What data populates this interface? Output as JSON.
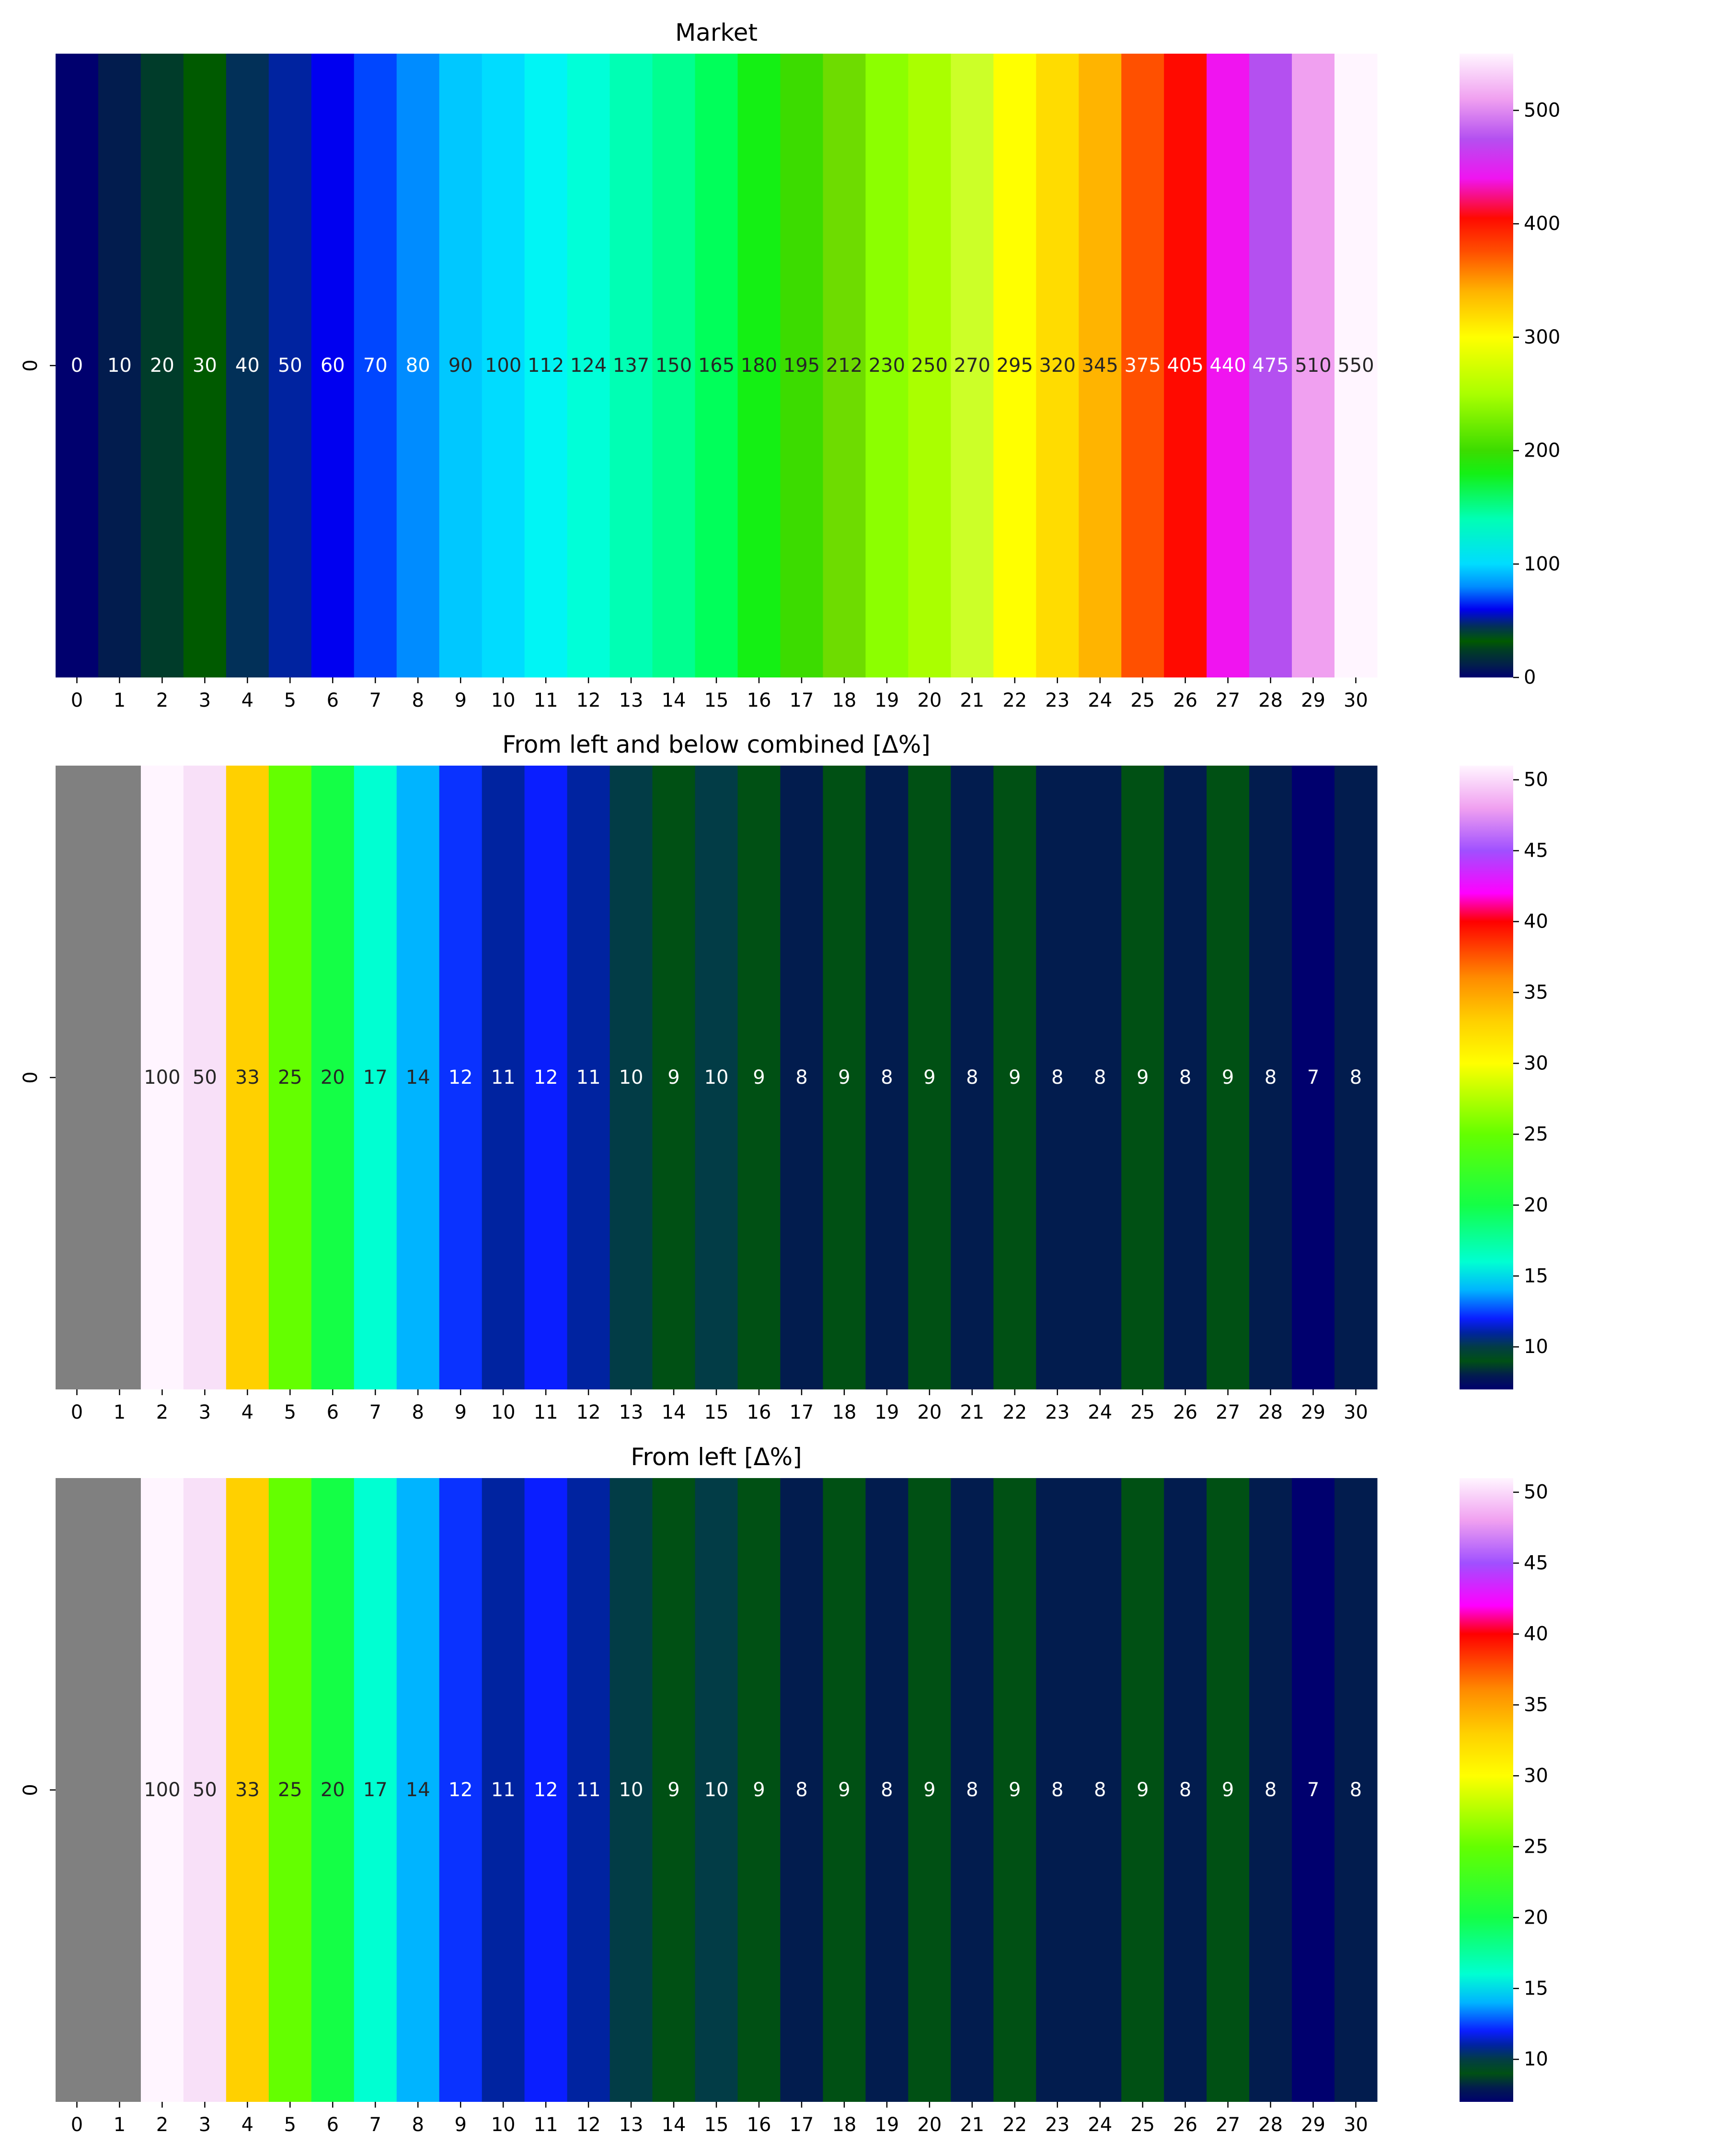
{
  "chart_data": [
    {
      "type": "heatmap",
      "title": "Market",
      "y_categories": [
        "0"
      ],
      "x_categories": [
        "0",
        "1",
        "2",
        "3",
        "4",
        "5",
        "6",
        "7",
        "8",
        "9",
        "10",
        "11",
        "12",
        "13",
        "14",
        "15",
        "16",
        "17",
        "18",
        "19",
        "20",
        "21",
        "22",
        "23",
        "24",
        "25",
        "26",
        "27",
        "28",
        "29",
        "30"
      ],
      "values": [
        0,
        10,
        20,
        30,
        40,
        50,
        60,
        70,
        80,
        90,
        100,
        112,
        124,
        137,
        150,
        165,
        180,
        195,
        212,
        230,
        250,
        270,
        295,
        320,
        345,
        375,
        405,
        440,
        475,
        510,
        550
      ],
      "cell_colors": [
        "#00006e",
        "#021c4e",
        "#003c2a",
        "#005a00",
        "#023058",
        "#0023a0",
        "#0000f0",
        "#0046ff",
        "#008cff",
        "#00c8ff",
        "#00dcff",
        "#00f5f5",
        "#00ffd8",
        "#00ffb4",
        "#00ff90",
        "#00ff5a",
        "#14f014",
        "#3cdc00",
        "#6edc00",
        "#8cff00",
        "#aaff00",
        "#ccff28",
        "#ffff00",
        "#ffdc00",
        "#ffb400",
        "#ff5000",
        "#ff0a00",
        "#f014f0",
        "#b450f0",
        "#f0a0f0",
        "#fff5ff"
      ],
      "label_colors": [
        "#ffffff",
        "#ffffff",
        "#ffffff",
        "#ffffff",
        "#ffffff",
        "#ffffff",
        "#ffffff",
        "#ffffff",
        "#ffffff",
        "#262626",
        "#262626",
        "#262626",
        "#262626",
        "#262626",
        "#262626",
        "#262626",
        "#262626",
        "#262626",
        "#262626",
        "#262626",
        "#262626",
        "#262626",
        "#262626",
        "#262626",
        "#262626",
        "#ffffff",
        "#ffffff",
        "#ffffff",
        "#ffffff",
        "#262626",
        "#262626"
      ],
      "colorbar": {
        "range": [
          0,
          550
        ],
        "ticks": [
          0,
          100,
          200,
          300,
          400,
          500
        ],
        "tick_labels": [
          "0",
          "100",
          "200",
          "300",
          "400",
          "500"
        ],
        "stops": [
          [
            0,
            "#00006e"
          ],
          [
            10,
            "#021c4e"
          ],
          [
            25,
            "#004020"
          ],
          [
            32,
            "#005a00"
          ],
          [
            45,
            "#023058"
          ],
          [
            60,
            "#0000f0"
          ],
          [
            80,
            "#008cff"
          ],
          [
            100,
            "#00dcff"
          ],
          [
            140,
            "#00ffb4"
          ],
          [
            180,
            "#14f014"
          ],
          [
            200,
            "#3cdc00"
          ],
          [
            250,
            "#aaff00"
          ],
          [
            300,
            "#ffff00"
          ],
          [
            340,
            "#ffb400"
          ],
          [
            375,
            "#ff5000"
          ],
          [
            405,
            "#ff0a00"
          ],
          [
            440,
            "#f014f0"
          ],
          [
            475,
            "#b450f0"
          ],
          [
            510,
            "#f0a0f0"
          ],
          [
            550,
            "#fff5ff"
          ]
        ]
      }
    },
    {
      "type": "heatmap",
      "title": "From left and below combined [Δ%]",
      "y_categories": [
        "0"
      ],
      "x_categories": [
        "0",
        "1",
        "2",
        "3",
        "4",
        "5",
        "6",
        "7",
        "8",
        "9",
        "10",
        "11",
        "12",
        "13",
        "14",
        "15",
        "16",
        "17",
        "18",
        "19",
        "20",
        "21",
        "22",
        "23",
        "24",
        "25",
        "26",
        "27",
        "28",
        "29",
        "30"
      ],
      "values": [
        null,
        null,
        100,
        50,
        33,
        25,
        20,
        17,
        14,
        12,
        11,
        12,
        11,
        10,
        9,
        10,
        9,
        8,
        9,
        8,
        9,
        8,
        9,
        8,
        8,
        9,
        8,
        9,
        8,
        7,
        8
      ],
      "missing_color": "#808080",
      "cell_colors": [
        "#808080",
        "#808080",
        "#fff5ff",
        "#f8e0f8",
        "#ffd000",
        "#64ff00",
        "#14ff46",
        "#00ffd2",
        "#00b4ff",
        "#0a32ff",
        "#0023a0",
        "#0a1eff",
        "#0023a0",
        "#023c46",
        "#005014",
        "#023c46",
        "#005014",
        "#021c4e",
        "#005014",
        "#021c4e",
        "#005014",
        "#021c4e",
        "#005014",
        "#021c4e",
        "#021c4e",
        "#005014",
        "#021c4e",
        "#005014",
        "#021c4e",
        "#00006e",
        "#021c4e"
      ],
      "label_colors": [
        "#ffffff",
        "#ffffff",
        "#262626",
        "#262626",
        "#262626",
        "#262626",
        "#262626",
        "#262626",
        "#262626",
        "#ffffff",
        "#ffffff",
        "#ffffff",
        "#ffffff",
        "#ffffff",
        "#ffffff",
        "#ffffff",
        "#ffffff",
        "#ffffff",
        "#ffffff",
        "#ffffff",
        "#ffffff",
        "#ffffff",
        "#ffffff",
        "#ffffff",
        "#ffffff",
        "#ffffff",
        "#ffffff",
        "#ffffff",
        "#ffffff",
        "#ffffff",
        "#ffffff"
      ],
      "colorbar": {
        "range": [
          7,
          51
        ],
        "ticks": [
          10,
          15,
          20,
          25,
          30,
          35,
          40,
          45,
          50
        ],
        "tick_labels": [
          "10",
          "15",
          "20",
          "25",
          "30",
          "35",
          "40",
          "45",
          "50"
        ],
        "stops": [
          [
            7,
            "#00006e"
          ],
          [
            8,
            "#021c4e"
          ],
          [
            9,
            "#005014"
          ],
          [
            10,
            "#023c46"
          ],
          [
            11,
            "#0023a0"
          ],
          [
            12,
            "#0a1eff"
          ],
          [
            14,
            "#00b4ff"
          ],
          [
            16,
            "#00ffd2"
          ],
          [
            20,
            "#14ff46"
          ],
          [
            25,
            "#64ff00"
          ],
          [
            30,
            "#ffff00"
          ],
          [
            33,
            "#ffd000"
          ],
          [
            36,
            "#ff8c00"
          ],
          [
            40,
            "#ff0000"
          ],
          [
            42,
            "#ff00ff"
          ],
          [
            45,
            "#a050ff"
          ],
          [
            48,
            "#f0a0f0"
          ],
          [
            51,
            "#fff5ff"
          ]
        ]
      }
    },
    {
      "type": "heatmap",
      "title": "From left [Δ%]",
      "y_categories": [
        "0"
      ],
      "x_categories": [
        "0",
        "1",
        "2",
        "3",
        "4",
        "5",
        "6",
        "7",
        "8",
        "9",
        "10",
        "11",
        "12",
        "13",
        "14",
        "15",
        "16",
        "17",
        "18",
        "19",
        "20",
        "21",
        "22",
        "23",
        "24",
        "25",
        "26",
        "27",
        "28",
        "29",
        "30"
      ],
      "values": [
        null,
        null,
        100,
        50,
        33,
        25,
        20,
        17,
        14,
        12,
        11,
        12,
        11,
        10,
        9,
        10,
        9,
        8,
        9,
        8,
        9,
        8,
        9,
        8,
        8,
        9,
        8,
        9,
        8,
        7,
        8
      ],
      "missing_color": "#808080",
      "cell_colors": [
        "#808080",
        "#808080",
        "#fff5ff",
        "#f8e0f8",
        "#ffd000",
        "#64ff00",
        "#14ff46",
        "#00ffd2",
        "#00b4ff",
        "#0a32ff",
        "#0023a0",
        "#0a1eff",
        "#0023a0",
        "#023c46",
        "#005014",
        "#023c46",
        "#005014",
        "#021c4e",
        "#005014",
        "#021c4e",
        "#005014",
        "#021c4e",
        "#005014",
        "#021c4e",
        "#021c4e",
        "#005014",
        "#021c4e",
        "#005014",
        "#021c4e",
        "#00006e",
        "#021c4e"
      ],
      "label_colors": [
        "#ffffff",
        "#ffffff",
        "#262626",
        "#262626",
        "#262626",
        "#262626",
        "#262626",
        "#262626",
        "#262626",
        "#ffffff",
        "#ffffff",
        "#ffffff",
        "#ffffff",
        "#ffffff",
        "#ffffff",
        "#ffffff",
        "#ffffff",
        "#ffffff",
        "#ffffff",
        "#ffffff",
        "#ffffff",
        "#ffffff",
        "#ffffff",
        "#ffffff",
        "#ffffff",
        "#ffffff",
        "#ffffff",
        "#ffffff",
        "#ffffff",
        "#ffffff",
        "#ffffff"
      ],
      "colorbar": {
        "range": [
          7,
          51
        ],
        "ticks": [
          10,
          15,
          20,
          25,
          30,
          35,
          40,
          45,
          50
        ],
        "tick_labels": [
          "10",
          "15",
          "20",
          "25",
          "30",
          "35",
          "40",
          "45",
          "50"
        ],
        "stops": [
          [
            7,
            "#00006e"
          ],
          [
            8,
            "#021c4e"
          ],
          [
            9,
            "#005014"
          ],
          [
            10,
            "#023c46"
          ],
          [
            11,
            "#0023a0"
          ],
          [
            12,
            "#0a1eff"
          ],
          [
            14,
            "#00b4ff"
          ],
          [
            16,
            "#00ffd2"
          ],
          [
            20,
            "#14ff46"
          ],
          [
            25,
            "#64ff00"
          ],
          [
            30,
            "#ffff00"
          ],
          [
            33,
            "#ffd000"
          ],
          [
            36,
            "#ff8c00"
          ],
          [
            40,
            "#ff0000"
          ],
          [
            42,
            "#ff00ff"
          ],
          [
            45,
            "#a050ff"
          ],
          [
            48,
            "#f0a0f0"
          ],
          [
            51,
            "#fff5ff"
          ]
        ]
      }
    }
  ]
}
